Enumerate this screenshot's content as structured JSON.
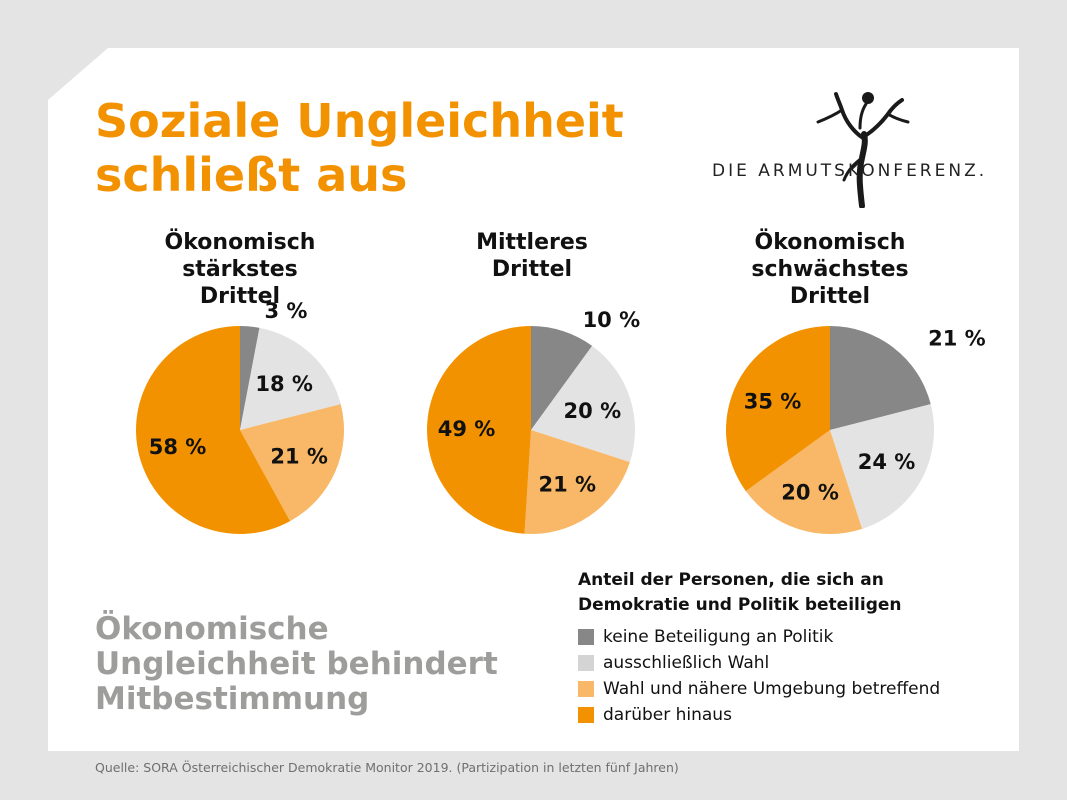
{
  "title_lines": [
    "Soziale Ungleichheit",
    "schließt aus"
  ],
  "logo_text": "DIE ARMUTSKONFERENZ.",
  "subtitle_lines": [
    "Ökonomische",
    "Ungleichheit behindert",
    "Mitbestimmung"
  ],
  "source": "Quelle: SORA Österreichischer Demokratie Monitor 2019. (Partizipation in letzten fünf Jahren)",
  "colors": {
    "title": "#f39200",
    "subtitle": "#9d9d9c",
    "keine": "#878787",
    "wahl": "#e3e3e3",
    "umgebung": "#f9b867",
    "hinaus": "#f39200"
  },
  "chart_data": {
    "type": "pie",
    "legend": {
      "title_lines": [
        "Anteil der Personen, die sich an",
        "Demokratie und Politik beteiligen"
      ],
      "placement": "bottom-right"
    },
    "categories": [
      "keine Beteiligung an Politik",
      "ausschließlich Wahl",
      "Wahl und nähere Umgebung betreffend",
      "darüber hinaus"
    ],
    "pies": [
      {
        "title_lines": [
          "Ökonomisch",
          "stärkstes",
          "Drittel"
        ],
        "values": [
          3,
          18,
          21,
          58
        ],
        "labels": [
          "3 %",
          "18 %",
          "21 %",
          "58 %"
        ]
      },
      {
        "title_lines": [
          "Mittleres",
          "Drittel"
        ],
        "values": [
          10,
          20,
          21,
          49
        ],
        "labels": [
          "10 %",
          "20 %",
          "21 %",
          "49 %"
        ]
      },
      {
        "title_lines": [
          "Ökonomisch",
          "schwächstes",
          "Drittel"
        ],
        "values": [
          21,
          24,
          20,
          35
        ],
        "labels": [
          "21 %",
          "24 %",
          "20 %",
          "35 %"
        ]
      }
    ]
  }
}
